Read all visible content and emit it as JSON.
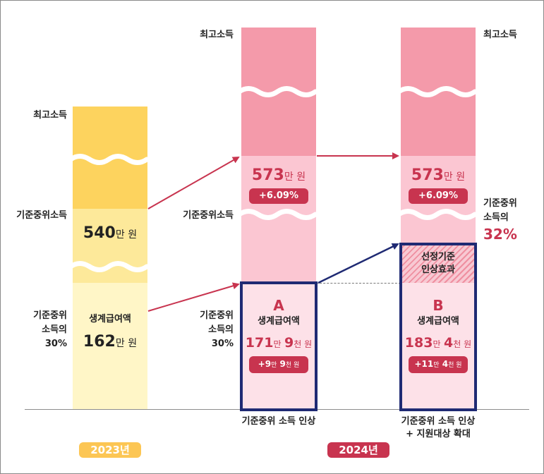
{
  "top_income_label": "최고소득",
  "median_income_label": "기준중위소득",
  "thirty_pct_label": [
    "기준중위",
    "소득의",
    "30%"
  ],
  "benefit_label": "생계급여액",
  "col2023": {
    "median_value": "540",
    "median_unit": "만 원",
    "benefit_value": "162",
    "benefit_unit": "만 원",
    "year": "2023년"
  },
  "colA": {
    "median_value": "573",
    "median_unit": "만 원",
    "median_growth": "+6.09%",
    "letter": "A",
    "benefit_v1": "171",
    "benefit_u1": "만",
    "benefit_v2": "9",
    "benefit_u2": "천 원",
    "benefit_change_v1": "+9",
    "benefit_change_u1": "만",
    "benefit_change_v2": "9",
    "benefit_change_u2": "천 원",
    "caption": "기준중위 소득 인상"
  },
  "colB": {
    "median_value": "573",
    "median_unit": "만 원",
    "median_growth": "+6.09%",
    "effect_label": [
      "선정기준",
      "인상효과"
    ],
    "letter": "B",
    "benefit_v1": "183",
    "benefit_u1": "만",
    "benefit_v2": "4",
    "benefit_u2": "천 원",
    "benefit_change_v1": "+11",
    "benefit_change_u1": "만",
    "benefit_change_v2": "4",
    "benefit_change_u2": "천 원",
    "caption": [
      "기준중위 소득 인상",
      "+ 지원대상 확대"
    ],
    "year": "2024년"
  },
  "right_pct_label": [
    "기준중위",
    "소득의"
  ],
  "right_pct_value": "32%",
  "colors": {
    "yellow_dark": "#fdd35e",
    "yellow_mid": "#fde99a",
    "yellow_light": "#fff6c7",
    "pink_dark": "#f49aaa",
    "pink_mid": "#fbc6d2",
    "pink_light": "#fde1e8",
    "accent_red": "#c8344f",
    "navy": "#1f2a73",
    "year_2023": "#fcc654",
    "year_2024": "#c8344f"
  }
}
